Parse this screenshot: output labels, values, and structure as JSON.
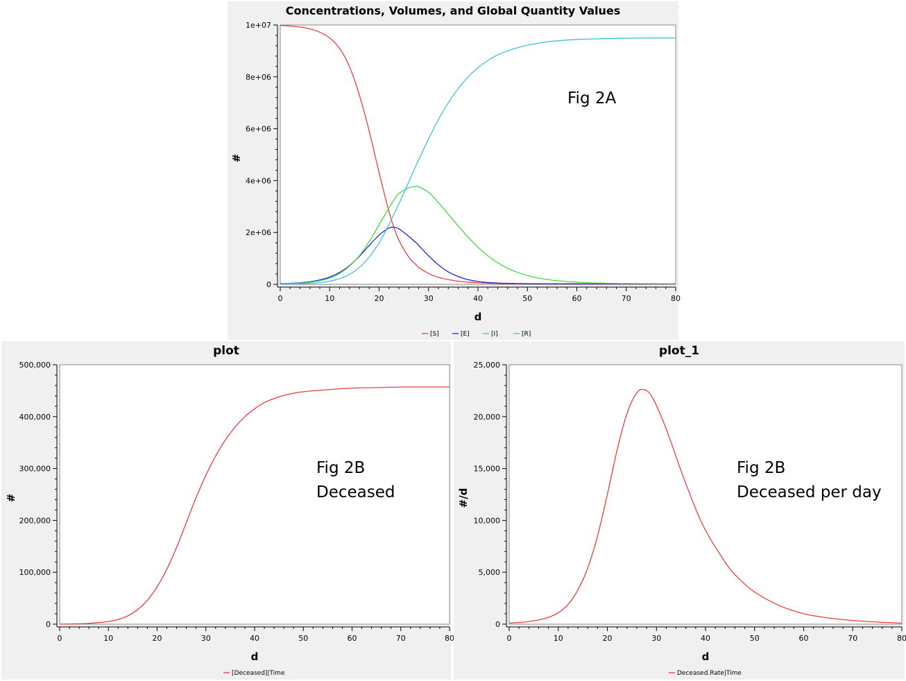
{
  "chart_data": [
    {
      "type": "line",
      "title": "Concentrations, Volumes, and Global Quantity Values",
      "xlabel": "d",
      "ylabel": "#",
      "xlim": [
        0,
        80
      ],
      "ylim": [
        0,
        10000000
      ],
      "xticks": [
        0,
        10,
        20,
        30,
        40,
        50,
        60,
        70,
        80
      ],
      "xtick_labels": [
        "0",
        "10",
        "20",
        "30",
        "40",
        "50",
        "60",
        "70",
        "80"
      ],
      "yticks": [
        0,
        2000000,
        4000000,
        6000000,
        8000000,
        10000000
      ],
      "ytick_labels": [
        "0",
        "2e+06",
        "4e+06",
        "6e+06",
        "8e+06",
        "1e+07"
      ],
      "legend_position": "bottom",
      "annotation": [
        "Fig 2A"
      ],
      "x": [
        0,
        2,
        4,
        6,
        8,
        10,
        12,
        14,
        16,
        18,
        20,
        22,
        23,
        24,
        26,
        27.5,
        28,
        30,
        32,
        34,
        36,
        38,
        40,
        42,
        44,
        46,
        48,
        50,
        52,
        55,
        60,
        65,
        70,
        75,
        80
      ],
      "series": [
        {
          "name": "[S]",
          "color": "#ee3b3b",
          "values": [
            9980000,
            9960000,
            9920000,
            9850000,
            9720000,
            9500000,
            9100000,
            8400000,
            7300000,
            5900000,
            4300000,
            2800000,
            2200000,
            1700000,
            1050000,
            750000,
            650000,
            420000,
            270000,
            180000,
            120000,
            85000,
            60000,
            45000,
            35000,
            28000,
            23000,
            20000,
            18000,
            15000,
            12000,
            10000,
            9000,
            8000,
            7000
          ]
        },
        {
          "name": "[E]",
          "color": "#2424d8",
          "values": [
            30000,
            40000,
            60000,
            100000,
            170000,
            280000,
            460000,
            720000,
            1080000,
            1500000,
            1900000,
            2170000,
            2200000,
            2140000,
            1850000,
            1600000,
            1500000,
            1100000,
            750000,
            480000,
            300000,
            180000,
            110000,
            70000,
            50000,
            38000,
            30000,
            25000,
            22000,
            20000,
            18000,
            16000,
            15000,
            15000,
            15000
          ]
        },
        {
          "name": "[I]",
          "color": "#44d444",
          "values": [
            20000,
            30000,
            45000,
            80000,
            140000,
            240000,
            420000,
            700000,
            1100000,
            1650000,
            2300000,
            2950000,
            3250000,
            3500000,
            3720000,
            3780000,
            3760000,
            3550000,
            3150000,
            2700000,
            2250000,
            1820000,
            1430000,
            1100000,
            830000,
            620000,
            460000,
            340000,
            250000,
            160000,
            80000,
            45000,
            30000,
            25000,
            22000
          ]
        },
        {
          "name": "[R]",
          "color": "#3cc0e0",
          "values": [
            10000,
            15000,
            25000,
            40000,
            70000,
            120000,
            220000,
            380000,
            650000,
            1050000,
            1600000,
            2300000,
            2700000,
            3100000,
            3950000,
            4600000,
            4800000,
            5600000,
            6350000,
            7000000,
            7550000,
            8000000,
            8350000,
            8630000,
            8850000,
            9000000,
            9120000,
            9220000,
            9290000,
            9370000,
            9440000,
            9470000,
            9490000,
            9500000,
            9500000
          ]
        }
      ]
    },
    {
      "type": "line",
      "title": "plot",
      "xlabel": "d",
      "ylabel": "#",
      "xlim": [
        0,
        80
      ],
      "ylim": [
        0,
        500000
      ],
      "xticks": [
        0,
        10,
        20,
        30,
        40,
        50,
        60,
        70,
        80
      ],
      "xtick_labels": [
        "0",
        "10",
        "20",
        "30",
        "40",
        "50",
        "60",
        "70",
        "80"
      ],
      "yticks": [
        0,
        100000,
        200000,
        300000,
        400000,
        500000
      ],
      "ytick_labels": [
        "0",
        "100,000",
        "200,000",
        "300,000",
        "400,000",
        "500,000"
      ],
      "legend_position": "bottom",
      "annotation": [
        "Fig 2B",
        "Deceased"
      ],
      "x": [
        0,
        5,
        8,
        10,
        12,
        14,
        16,
        18,
        20,
        22,
        24,
        26,
        28,
        30,
        32,
        34,
        36,
        38,
        40,
        42,
        44,
        46,
        48,
        50,
        55,
        60,
        65,
        70,
        75,
        80
      ],
      "series": [
        {
          "name": "[Deceased]|Time",
          "color": "#ee3b3b",
          "values": [
            0,
            1000,
            3000,
            5000,
            9000,
            16000,
            28000,
            46000,
            72000,
            106000,
            148000,
            196000,
            244000,
            287000,
            324000,
            355000,
            380000,
            400000,
            415000,
            427000,
            435000,
            441000,
            445000,
            448000,
            452000,
            455000,
            456000,
            457000,
            457000,
            457000
          ]
        }
      ]
    },
    {
      "type": "line",
      "title": "plot_1",
      "xlabel": "d",
      "ylabel": "#/d",
      "xlim": [
        0,
        80
      ],
      "ylim": [
        0,
        25000
      ],
      "xticks": [
        0,
        10,
        20,
        30,
        40,
        50,
        60,
        70,
        80
      ],
      "xtick_labels": [
        "0",
        "10",
        "20",
        "30",
        "40",
        "50",
        "60",
        "70",
        "80"
      ],
      "yticks": [
        0,
        5000,
        10000,
        15000,
        20000,
        25000
      ],
      "ytick_labels": [
        "0",
        "5,000",
        "10,000",
        "15,000",
        "20,000",
        "25,000"
      ],
      "legend_position": "bottom",
      "annotation": [
        "Fig 2B",
        "Deceased per day"
      ],
      "x": [
        0,
        3,
        6,
        8,
        10,
        12,
        14,
        16,
        18,
        20,
        22,
        24,
        26,
        27.5,
        29,
        31,
        33,
        35,
        37,
        39,
        41,
        43,
        45,
        47,
        50,
        55,
        60,
        65,
        70,
        75,
        80
      ],
      "series": [
        {
          "name": "Deceased.Rate|Time",
          "color": "#ee3b3b",
          "values": [
            100,
            200,
            400,
            650,
            1100,
            1900,
            3300,
            5400,
            8500,
            12500,
            16800,
            20300,
            22300,
            22600,
            22000,
            20000,
            17500,
            14800,
            12300,
            10000,
            8200,
            6700,
            5300,
            4300,
            3100,
            1800,
            1000,
            600,
            350,
            200,
            100
          ]
        }
      ]
    }
  ]
}
